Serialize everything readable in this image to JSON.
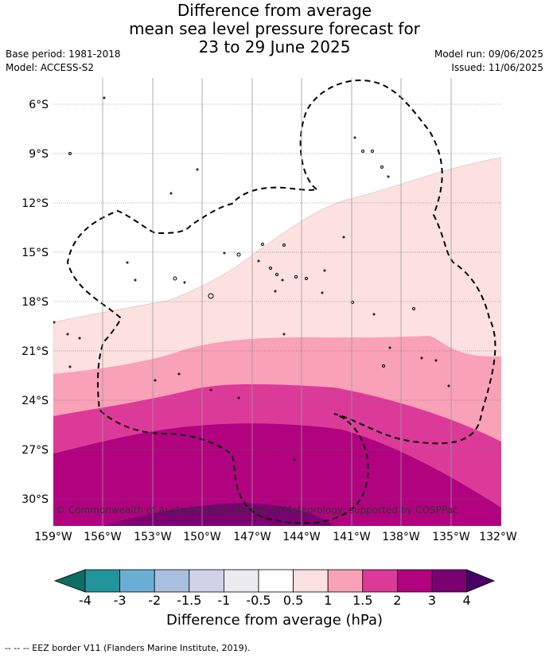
{
  "title": {
    "line1": "Difference from average",
    "line2": "mean sea level pressure forecast for",
    "line3": "23 to 29 June 2025"
  },
  "meta": {
    "base_period": "Base period: 1981-2018",
    "model": "Model: ACCESS-S2",
    "model_run": "Model run: 09/06/2025",
    "issued": "Issued: 11/06/2025"
  },
  "map": {
    "lat_ticks": [
      "6°S",
      "9°S",
      "12°S",
      "15°S",
      "18°S",
      "21°S",
      "24°S",
      "27°S",
      "30°S"
    ],
    "lon_ticks": [
      "159°W",
      "156°W",
      "153°W",
      "150°W",
      "147°W",
      "144°W",
      "141°W",
      "138°W",
      "135°W",
      "132°W"
    ],
    "copyright": "© Commonwealth of Australia 2025, Bureau of Meteorology; supported by COSPPac"
  },
  "colorbar": {
    "title": "Difference from average (hPa)",
    "labels": [
      "-4",
      "-3",
      "-2",
      "-1.5",
      "-1",
      "-0.5",
      "0.5",
      "1",
      "1.5",
      "2",
      "3",
      "4"
    ],
    "colors": [
      "#0f6d66",
      "#21949c",
      "#6aaed4",
      "#a9bfdf",
      "#d0d3e8",
      "#ececf0",
      "#ffffff",
      "#fde0e0",
      "#f9a1b6",
      "#dc3a99",
      "#b1037f",
      "#7b0072",
      "#4a0066"
    ]
  },
  "footnote": "-- -- -- EEZ border V11 (Flanders Marine Institute, 2019)."
}
